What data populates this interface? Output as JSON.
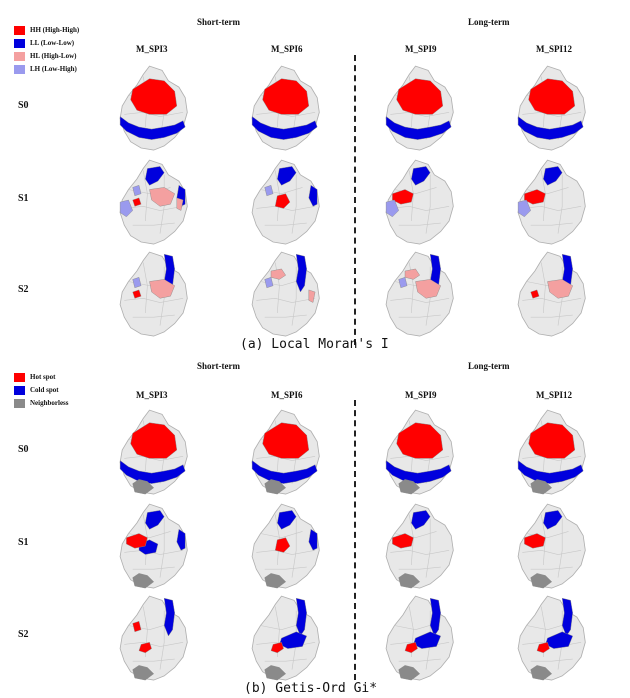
{
  "colors": {
    "region": "#e8e8e8",
    "border": "#b0b0b0",
    "hh": "#ff0000",
    "ll": "#0000dd",
    "hl": "#f4a0a0",
    "lh": "#9a9aee",
    "hot": "#ff0000",
    "cold": "#0000dd",
    "nb": "#8a8a8a"
  },
  "columns": [
    "M_SPI3",
    "M_SPI6",
    "M_SPI9",
    "M_SPI12"
  ],
  "rows": [
    "S0",
    "S1",
    "S2"
  ],
  "panels": [
    {
      "id": "a",
      "short": "Short-term",
      "long": "Long-term",
      "caption": "(a) Local Moran's I",
      "legend": [
        {
          "label": "HH (High-High)",
          "color": "#ff0000"
        },
        {
          "label": "LL (Low-Low)",
          "color": "#0000dd"
        },
        {
          "label": "HL (High-Low)",
          "color": "#f4a0a0"
        },
        {
          "label": "LH (Low-High)",
          "color": "#9a9aee"
        }
      ]
    },
    {
      "id": "b",
      "short": "Short-term",
      "long": "Long-term",
      "caption": "(b) Getis-Ord Gi*",
      "legend": [
        {
          "label": "Hot spot",
          "color": "#ff0000"
        },
        {
          "label": "Cold spot",
          "color": "#0000dd"
        },
        {
          "label": "Neighborless",
          "color": "#8a8a8a"
        }
      ]
    }
  ]
}
